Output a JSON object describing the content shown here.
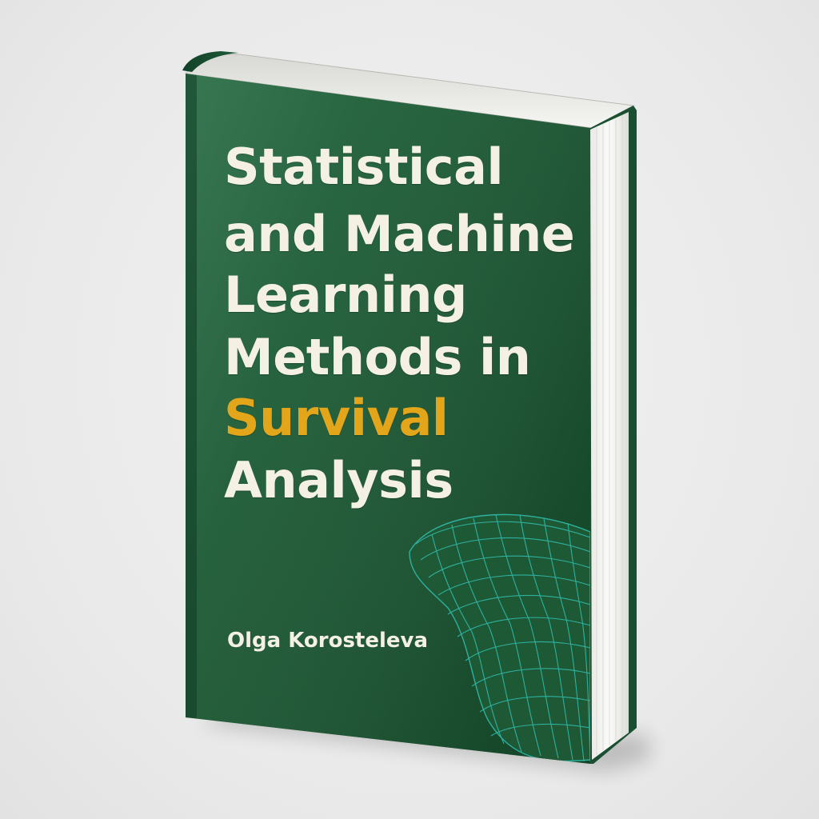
{
  "cover": {
    "title_lines": [
      {
        "text": "Statistical"
      },
      {
        "text": "and Machine"
      },
      {
        "text": "Learning"
      },
      {
        "text": "Methods in"
      },
      {
        "text": "Survival"
      },
      {
        "text": "Analysis"
      }
    ],
    "author": "Olga Korosteleva"
  },
  "colors": {
    "cover_green": "#1f5a36",
    "cover_green_dark": "#174a2c",
    "title_text": "#f4f1e4",
    "accent_text": "#e3a51a",
    "mesh": "#2fb7a6",
    "pages": "#f7f7f4",
    "background": "#ececec"
  },
  "decoration": {
    "mesh_icon": "wireframe-surface-icon"
  }
}
